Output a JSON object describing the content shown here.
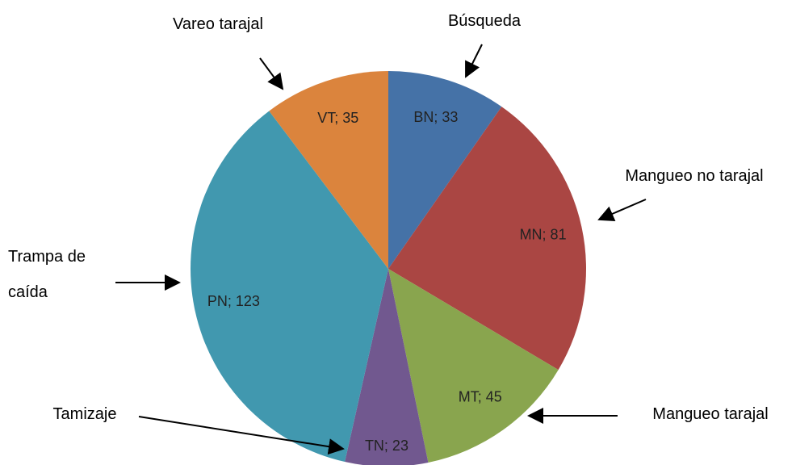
{
  "chart_data": {
    "type": "pie",
    "categories": [
      "Búsqueda",
      "Mangueo no tarajal",
      "Mangueo tarajal",
      "Tamizaje",
      "Trampa de caída",
      "Vareo tarajal"
    ],
    "values": [
      33,
      81,
      45,
      23,
      123,
      35
    ],
    "value_labels": [
      "BN; 33",
      "MN; 81",
      "MT; 45",
      "TN; 23",
      "PN; 123",
      "VT; 35"
    ],
    "colors": [
      "#4572a7",
      "#aa4643",
      "#89a54e",
      "#71588f",
      "#4198af",
      "#db843d"
    ]
  }
}
